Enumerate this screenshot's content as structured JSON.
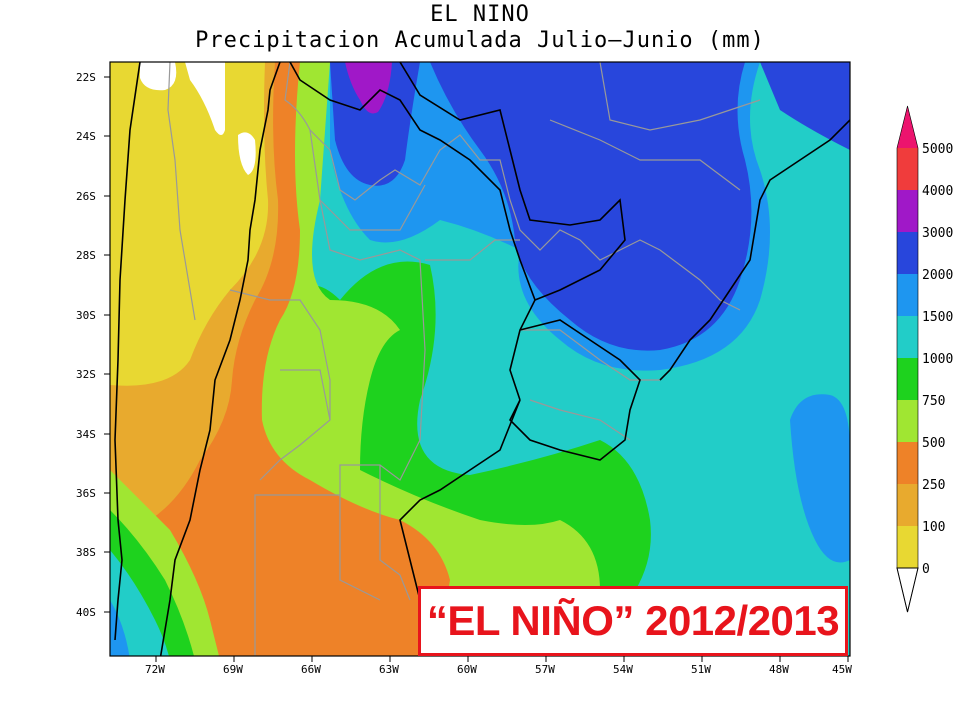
{
  "title": {
    "line1": "EL NINO",
    "line2": "Precipitacion Acumulada Julio–Junio (mm)"
  },
  "banner": "“EL NIÑO” 2012/2013",
  "lat_ticks": [
    "22S",
    "24S",
    "26S",
    "28S",
    "30S",
    "32S",
    "34S",
    "36S",
    "38S",
    "40S"
  ],
  "lon_ticks": [
    "72W",
    "69W",
    "66W",
    "63W",
    "60W",
    "57W",
    "54W",
    "51W",
    "48W",
    "45W"
  ],
  "legend": {
    "labels": [
      "5000",
      "4000",
      "3000",
      "2000",
      "1500",
      "1000",
      "750",
      "500",
      "250",
      "100",
      "0"
    ],
    "colors": {
      "c0": "#ffffff",
      "c100": "#e8d832",
      "c250": "#e8aa2e",
      "c500": "#ee8228",
      "c750": "#a0e632",
      "c1000": "#1ed21e",
      "c1500": "#22cdc8",
      "c2000": "#1e96f0",
      "c3000": "#2846dc",
      "c4000": "#a018c8",
      "c5000": "#f03c3c",
      "cmax": "#ec146e"
    }
  }
}
